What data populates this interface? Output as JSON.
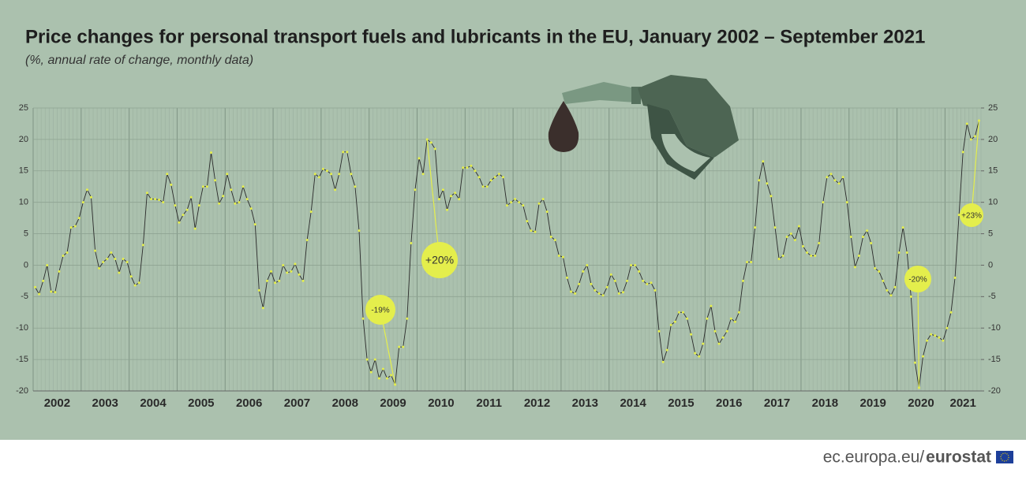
{
  "chart_data": {
    "type": "line",
    "title": "Price changes for personal transport fuels and lubricants in the EU, January 2002 – September 2021",
    "subtitle": "(%, annual rate of change, monthly data)",
    "categories": [
      "2002",
      null,
      null,
      null,
      null,
      null,
      null,
      null,
      null,
      null,
      null,
      null,
      "2003",
      null,
      null,
      null,
      null,
      null,
      null,
      null,
      null,
      null,
      null,
      null,
      "2004",
      null,
      null,
      null,
      null,
      null,
      null,
      null,
      null,
      null,
      null,
      null,
      "2005",
      null,
      null,
      null,
      null,
      null,
      null,
      null,
      null,
      null,
      null,
      null,
      "2006",
      null,
      null,
      null,
      null,
      null,
      null,
      null,
      null,
      null,
      null,
      null,
      "2007",
      null,
      null,
      null,
      null,
      null,
      null,
      null,
      null,
      null,
      null,
      null,
      "2008",
      null,
      null,
      null,
      null,
      null,
      null,
      null,
      null,
      null,
      null,
      null,
      "2009",
      null,
      null,
      null,
      null,
      null,
      null,
      null,
      null,
      null,
      null,
      null,
      "2010",
      null,
      null,
      null,
      null,
      null,
      null,
      null,
      null,
      null,
      null,
      null,
      "2011",
      null,
      null,
      null,
      null,
      null,
      null,
      null,
      null,
      null,
      null,
      null,
      "2012",
      null,
      null,
      null,
      null,
      null,
      null,
      null,
      null,
      null,
      null,
      null,
      "2013",
      null,
      null,
      null,
      null,
      null,
      null,
      null,
      null,
      null,
      null,
      null,
      "2014",
      null,
      null,
      null,
      null,
      null,
      null,
      null,
      null,
      null,
      null,
      null,
      "2015",
      null,
      null,
      null,
      null,
      null,
      null,
      null,
      null,
      null,
      null,
      null,
      "2016",
      null,
      null,
      null,
      null,
      null,
      null,
      null,
      null,
      null,
      null,
      null,
      "2017",
      null,
      null,
      null,
      null,
      null,
      null,
      null,
      null,
      null,
      null,
      null,
      "2018",
      null,
      null,
      null,
      null,
      null,
      null,
      null,
      null,
      null,
      null,
      null,
      "2019",
      null,
      null,
      null,
      null,
      null,
      null,
      null,
      null,
      null,
      null,
      null,
      "2020",
      null,
      null,
      null,
      null,
      null,
      null,
      null,
      null,
      null,
      null,
      null,
      "2021",
      null,
      null,
      null,
      null,
      null,
      null,
      null,
      null
    ],
    "series": [
      {
        "color": "#2b2b2b",
        "marker_color": "#e4ee4c",
        "values": [
          -3.5,
          -4.6,
          -2.5,
          0,
          -4.2,
          -4.3,
          -1,
          1.5,
          2,
          6,
          6.2,
          7.5,
          10,
          12,
          10.8,
          2.3,
          -0.5,
          0.5,
          1,
          2,
          1,
          -1.2,
          1,
          0.5,
          -1.8,
          -3.2,
          -2.8,
          3.2,
          11.5,
          10.5,
          10.5,
          10.4,
          10,
          14.5,
          12.8,
          9.5,
          6.8,
          8,
          8.8,
          10.8,
          5.8,
          9.5,
          12.5,
          12.5,
          17.9,
          13.5,
          9.8,
          11,
          14.5,
          12,
          9.8,
          10,
          12.5,
          10.5,
          9,
          6.5,
          -4,
          -6.8,
          -2.5,
          -1,
          -2.8,
          -2.5,
          0,
          -1.2,
          -1,
          0.2,
          -1.5,
          -2.5,
          4,
          8.5,
          14.5,
          14,
          15.3,
          15,
          14.5,
          12,
          14.5,
          18,
          18,
          14.5,
          12.5,
          5.5,
          -8.5,
          -15,
          -17,
          -15,
          -18,
          -16.5,
          -18,
          -17.5,
          -19,
          -13,
          -13,
          -8.5,
          3.5,
          12,
          17,
          14.5,
          20,
          19.5,
          18.5,
          10.5,
          12,
          8.8,
          11,
          11.5,
          10.5,
          15.5,
          15.5,
          15.8,
          15,
          14,
          12.5,
          12.5,
          13.5,
          14,
          14.5,
          14,
          9.5,
          10,
          10.5,
          10,
          9.5,
          7,
          5.5,
          5.3,
          9.8,
          10.5,
          8.5,
          4.5,
          4,
          1.5,
          1.3,
          -2,
          -4.2,
          -4.5,
          -3,
          -1,
          0,
          -3,
          -4,
          -4.5,
          -4.8,
          -3.5,
          -1.5,
          -2.5,
          -4.5,
          -4.3,
          -2.5,
          0,
          0,
          -1,
          -2.5,
          -3,
          -2.8,
          -4,
          -10.5,
          -15.4,
          -13.5,
          -9.5,
          -9,
          -7.5,
          -7.5,
          -8.5,
          -11,
          -14,
          -14.5,
          -12.5,
          -8.5,
          -6.5,
          -10.5,
          -12.5,
          -11.5,
          -10.5,
          -8.5,
          -9,
          -7.5,
          -2.5,
          0.5,
          0.5,
          6,
          13.5,
          16.5,
          13,
          11,
          6,
          1,
          1.5,
          4.5,
          5,
          4,
          6.2,
          3,
          2,
          1.5,
          1.5,
          3.5,
          10,
          14,
          14.5,
          13.5,
          13,
          14,
          10,
          4.5,
          -0.3,
          1.5,
          4.5,
          5.5,
          3.5,
          -0.5,
          -1,
          -2.5,
          -4,
          -4.8,
          -3.5,
          2,
          6,
          2,
          -5,
          -15.5,
          -19.5,
          -14.5,
          -12,
          -11,
          -11.2,
          -11.5,
          -12,
          -10,
          -7.5,
          -2,
          8,
          18,
          22.5,
          20,
          20.5,
          23
        ]
      }
    ],
    "ylim": [
      -20,
      25
    ],
    "yticks": [
      -20,
      -15,
      -10,
      -5,
      0,
      5,
      10,
      15,
      20,
      25
    ],
    "y2lim": [
      -20,
      25
    ],
    "y2ticks": [
      -20,
      -15,
      -10,
      -5,
      0,
      5,
      10,
      15,
      20,
      25
    ],
    "grid": true,
    "annotations": [
      {
        "text": "-19%"
      },
      {
        "text": "+20%"
      },
      {
        "text": "-20%"
      },
      {
        "text": "+23%"
      }
    ]
  },
  "footer": {
    "site": "ec.europa.eu/",
    "brand": "eurostat"
  }
}
